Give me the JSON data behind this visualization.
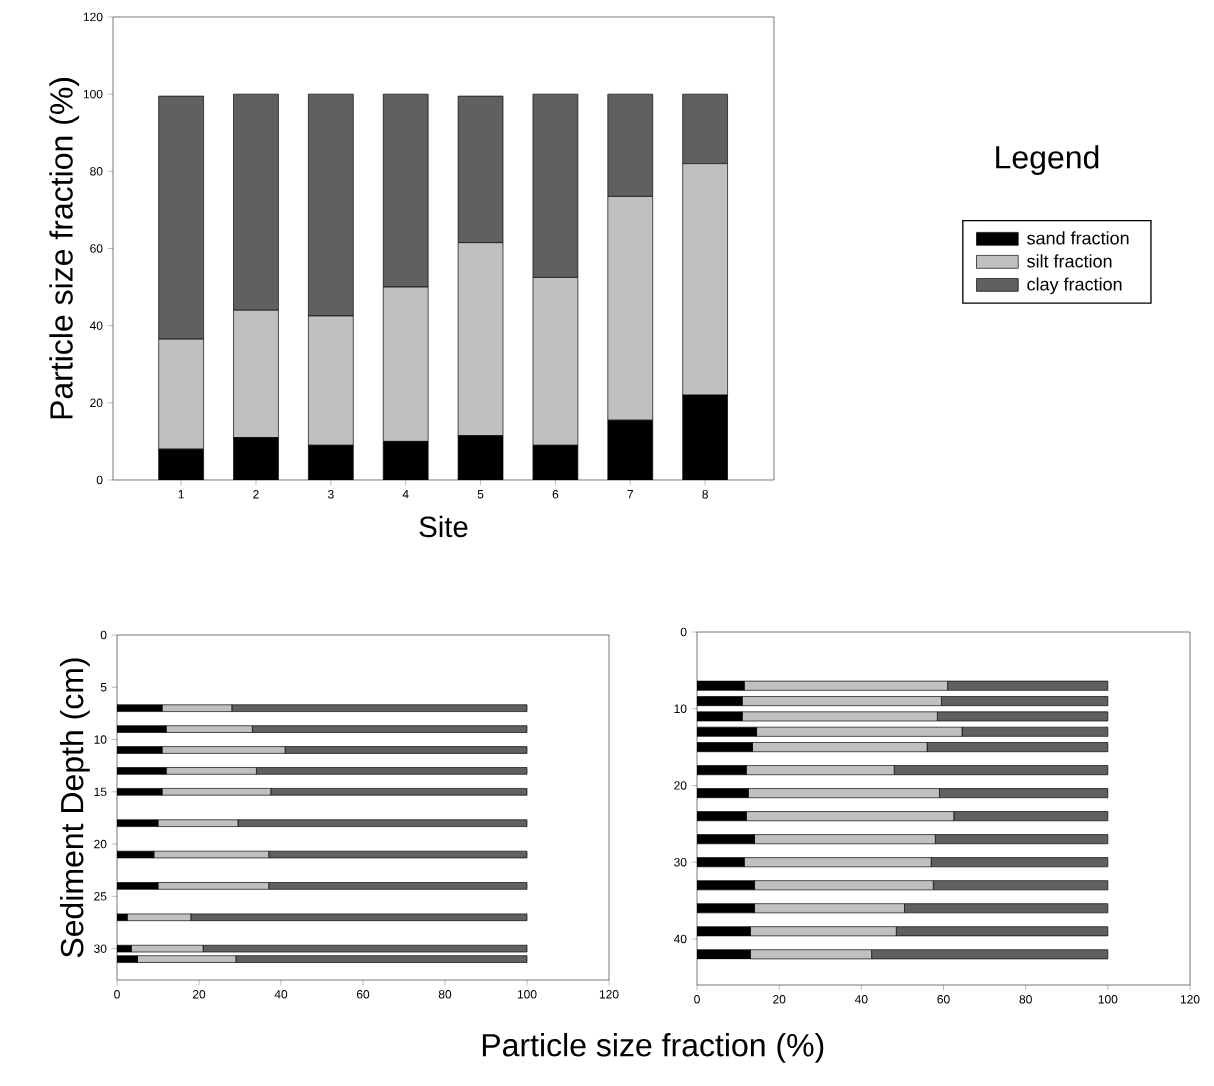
{
  "chart_data": [
    {
      "type": "bar",
      "stacked": true,
      "categories": [
        "1",
        "2",
        "3",
        "4",
        "5",
        "6",
        "7",
        "8"
      ],
      "series": [
        {
          "name": "sand fraction",
          "color": "#000000",
          "values": [
            8,
            11,
            9,
            10,
            11.5,
            9,
            15.5,
            22
          ]
        },
        {
          "name": "silt fraction",
          "color": "#c0c0c0",
          "values": [
            28.5,
            33,
            33.5,
            40,
            50,
            43.5,
            58,
            60
          ]
        },
        {
          "name": "clay fraction",
          "color": "#606060",
          "values": [
            63,
            56,
            57.5,
            50,
            38,
            47.5,
            26.5,
            18
          ]
        }
      ],
      "ylim": [
        0,
        120
      ],
      "yticks": [
        0,
        20,
        40,
        60,
        80,
        100,
        120
      ],
      "xlabel": "Site",
      "ylabel": "Particle size fraction (%)",
      "legend": "right",
      "legend_title": "Legend"
    },
    {
      "type": "bar",
      "stacked": true,
      "orientation": "horizontal",
      "x": [
        7,
        9,
        11,
        13,
        15,
        18,
        21,
        24,
        27,
        30,
        31
      ],
      "series": [
        {
          "color": "#000000",
          "values": [
            11,
            12,
            11,
            12,
            11,
            10,
            9,
            10,
            2.5,
            3.5,
            5
          ]
        },
        {
          "color": "#c0c0c0",
          "values": [
            17,
            21,
            30,
            22,
            26.5,
            19.5,
            28,
            27,
            15.5,
            17.5,
            24
          ]
        },
        {
          "color": "#606060",
          "values": [
            72,
            67,
            59,
            66,
            62.5,
            70.5,
            63,
            63,
            82,
            79,
            71
          ]
        }
      ],
      "xlim": [
        0,
        120
      ],
      "xticks": [
        0,
        20,
        40,
        60,
        80,
        100,
        120
      ],
      "ylim": [
        33,
        0
      ],
      "yticks": [
        0,
        5,
        10,
        15,
        20,
        25,
        30
      ],
      "xlabel": "Particle size fraction (%)",
      "ylabel": "Sediment Depth (cm)"
    },
    {
      "type": "bar",
      "stacked": true,
      "orientation": "horizontal",
      "x": [
        7,
        9,
        11,
        13,
        15,
        18,
        21,
        24,
        27,
        30,
        33,
        36,
        39,
        42
      ],
      "series": [
        {
          "color": "#000000",
          "values": [
            11.5,
            11,
            11,
            14.5,
            13.5,
            12,
            12.5,
            12,
            14,
            11.5,
            14,
            14,
            13,
            13
          ]
        },
        {
          "color": "#c0c0c0",
          "values": [
            49.5,
            48.5,
            47.5,
            50,
            42.5,
            36,
            46.5,
            50.5,
            44,
            45.5,
            43.5,
            36.5,
            35.5,
            29.5
          ]
        },
        {
          "color": "#606060",
          "values": [
            39,
            40.5,
            41.5,
            35.5,
            44,
            52,
            41,
            37.5,
            42,
            43,
            42.5,
            49.5,
            51.5,
            57.5
          ]
        }
      ],
      "xlim": [
        0,
        120
      ],
      "xticks": [
        0,
        20,
        40,
        60,
        80,
        100,
        120
      ],
      "ylim": [
        46,
        0
      ],
      "yticks": [
        0,
        10,
        20,
        30,
        40
      ]
    }
  ]
}
